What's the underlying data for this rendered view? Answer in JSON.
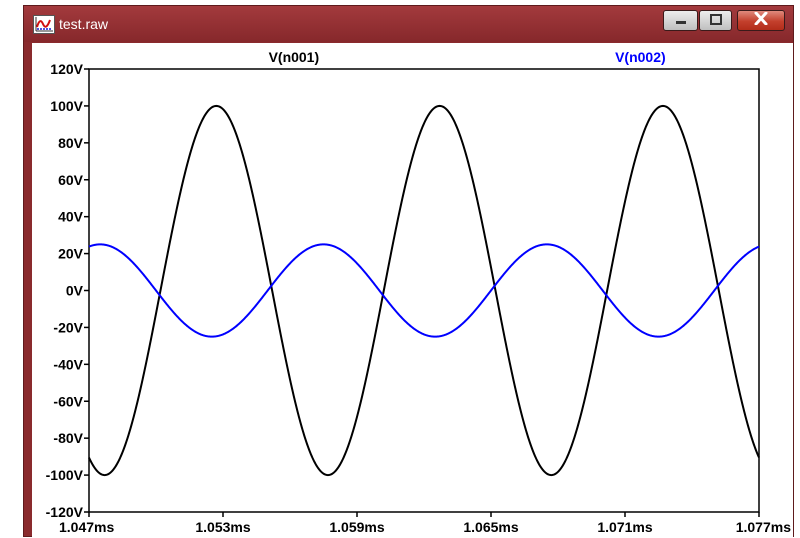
{
  "window": {
    "title": "test.raw",
    "controls": {
      "minimize": "minimize",
      "maximize": "maximize",
      "close": "close"
    }
  },
  "chart_data": {
    "type": "line",
    "title": "",
    "xlabel": "",
    "ylabel": "",
    "x_ticks": [
      "1.047ms",
      "1.053ms",
      "1.059ms",
      "1.065ms",
      "1.071ms",
      "1.077ms"
    ],
    "y_ticks": [
      "120V",
      "100V",
      "80V",
      "60V",
      "40V",
      "20V",
      "0V",
      "-20V",
      "-40V",
      "-60V",
      "-80V",
      "-100V",
      "-120V"
    ],
    "xlim": [
      1.047,
      1.077
    ],
    "ylim": [
      -120,
      120
    ],
    "x_unit": "ms",
    "y_unit": "V",
    "grid": false,
    "series": [
      {
        "name": "V(n001)",
        "color": "#000000",
        "waveform": "sine",
        "amplitude": 100,
        "frequency_khz": 100,
        "peak_times_ms": [
          1.0527,
          1.0627,
          1.0727
        ]
      },
      {
        "name": "V(n002)",
        "color": "#0000ff",
        "waveform": "sine",
        "amplitude": 25,
        "frequency_khz": 100,
        "peak_times_ms": [
          1.0475,
          1.0575,
          1.0675,
          1.0775
        ]
      }
    ]
  }
}
